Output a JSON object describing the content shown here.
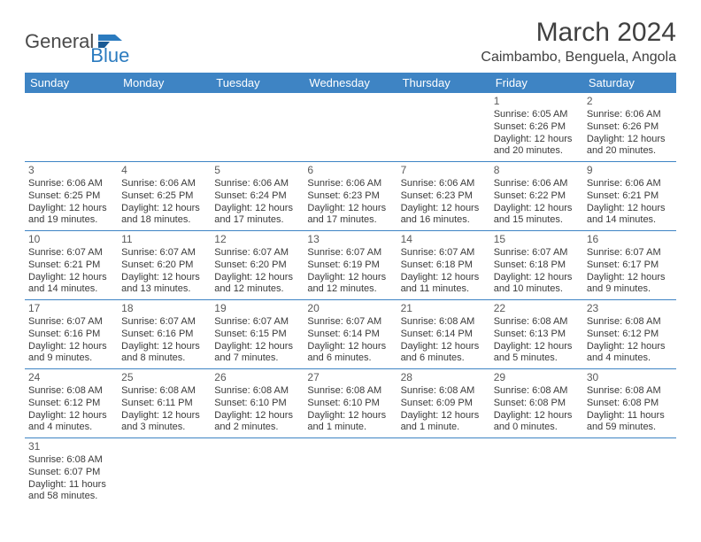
{
  "logo": {
    "text1": "General",
    "text2": "Blue"
  },
  "header": {
    "month": "March 2024",
    "location": "Caimbambo, Benguela, Angola"
  },
  "days": [
    "Sunday",
    "Monday",
    "Tuesday",
    "Wednesday",
    "Thursday",
    "Friday",
    "Saturday"
  ],
  "colors": {
    "header_bg": "#3e84c4",
    "header_text": "#ffffff",
    "text": "#3a3a3a",
    "logo_blue": "#2b7bbf"
  },
  "weeks": [
    [
      null,
      null,
      null,
      null,
      null,
      {
        "n": "1",
        "sr": "Sunrise: 6:05 AM",
        "ss": "Sunset: 6:26 PM",
        "d1": "Daylight: 12 hours",
        "d2": "and 20 minutes."
      },
      {
        "n": "2",
        "sr": "Sunrise: 6:06 AM",
        "ss": "Sunset: 6:26 PM",
        "d1": "Daylight: 12 hours",
        "d2": "and 20 minutes."
      }
    ],
    [
      {
        "n": "3",
        "sr": "Sunrise: 6:06 AM",
        "ss": "Sunset: 6:25 PM",
        "d1": "Daylight: 12 hours",
        "d2": "and 19 minutes."
      },
      {
        "n": "4",
        "sr": "Sunrise: 6:06 AM",
        "ss": "Sunset: 6:25 PM",
        "d1": "Daylight: 12 hours",
        "d2": "and 18 minutes."
      },
      {
        "n": "5",
        "sr": "Sunrise: 6:06 AM",
        "ss": "Sunset: 6:24 PM",
        "d1": "Daylight: 12 hours",
        "d2": "and 17 minutes."
      },
      {
        "n": "6",
        "sr": "Sunrise: 6:06 AM",
        "ss": "Sunset: 6:23 PM",
        "d1": "Daylight: 12 hours",
        "d2": "and 17 minutes."
      },
      {
        "n": "7",
        "sr": "Sunrise: 6:06 AM",
        "ss": "Sunset: 6:23 PM",
        "d1": "Daylight: 12 hours",
        "d2": "and 16 minutes."
      },
      {
        "n": "8",
        "sr": "Sunrise: 6:06 AM",
        "ss": "Sunset: 6:22 PM",
        "d1": "Daylight: 12 hours",
        "d2": "and 15 minutes."
      },
      {
        "n": "9",
        "sr": "Sunrise: 6:06 AM",
        "ss": "Sunset: 6:21 PM",
        "d1": "Daylight: 12 hours",
        "d2": "and 14 minutes."
      }
    ],
    [
      {
        "n": "10",
        "sr": "Sunrise: 6:07 AM",
        "ss": "Sunset: 6:21 PM",
        "d1": "Daylight: 12 hours",
        "d2": "and 14 minutes."
      },
      {
        "n": "11",
        "sr": "Sunrise: 6:07 AM",
        "ss": "Sunset: 6:20 PM",
        "d1": "Daylight: 12 hours",
        "d2": "and 13 minutes."
      },
      {
        "n": "12",
        "sr": "Sunrise: 6:07 AM",
        "ss": "Sunset: 6:20 PM",
        "d1": "Daylight: 12 hours",
        "d2": "and 12 minutes."
      },
      {
        "n": "13",
        "sr": "Sunrise: 6:07 AM",
        "ss": "Sunset: 6:19 PM",
        "d1": "Daylight: 12 hours",
        "d2": "and 12 minutes."
      },
      {
        "n": "14",
        "sr": "Sunrise: 6:07 AM",
        "ss": "Sunset: 6:18 PM",
        "d1": "Daylight: 12 hours",
        "d2": "and 11 minutes."
      },
      {
        "n": "15",
        "sr": "Sunrise: 6:07 AM",
        "ss": "Sunset: 6:18 PM",
        "d1": "Daylight: 12 hours",
        "d2": "and 10 minutes."
      },
      {
        "n": "16",
        "sr": "Sunrise: 6:07 AM",
        "ss": "Sunset: 6:17 PM",
        "d1": "Daylight: 12 hours",
        "d2": "and 9 minutes."
      }
    ],
    [
      {
        "n": "17",
        "sr": "Sunrise: 6:07 AM",
        "ss": "Sunset: 6:16 PM",
        "d1": "Daylight: 12 hours",
        "d2": "and 9 minutes."
      },
      {
        "n": "18",
        "sr": "Sunrise: 6:07 AM",
        "ss": "Sunset: 6:16 PM",
        "d1": "Daylight: 12 hours",
        "d2": "and 8 minutes."
      },
      {
        "n": "19",
        "sr": "Sunrise: 6:07 AM",
        "ss": "Sunset: 6:15 PM",
        "d1": "Daylight: 12 hours",
        "d2": "and 7 minutes."
      },
      {
        "n": "20",
        "sr": "Sunrise: 6:07 AM",
        "ss": "Sunset: 6:14 PM",
        "d1": "Daylight: 12 hours",
        "d2": "and 6 minutes."
      },
      {
        "n": "21",
        "sr": "Sunrise: 6:08 AM",
        "ss": "Sunset: 6:14 PM",
        "d1": "Daylight: 12 hours",
        "d2": "and 6 minutes."
      },
      {
        "n": "22",
        "sr": "Sunrise: 6:08 AM",
        "ss": "Sunset: 6:13 PM",
        "d1": "Daylight: 12 hours",
        "d2": "and 5 minutes."
      },
      {
        "n": "23",
        "sr": "Sunrise: 6:08 AM",
        "ss": "Sunset: 6:12 PM",
        "d1": "Daylight: 12 hours",
        "d2": "and 4 minutes."
      }
    ],
    [
      {
        "n": "24",
        "sr": "Sunrise: 6:08 AM",
        "ss": "Sunset: 6:12 PM",
        "d1": "Daylight: 12 hours",
        "d2": "and 4 minutes."
      },
      {
        "n": "25",
        "sr": "Sunrise: 6:08 AM",
        "ss": "Sunset: 6:11 PM",
        "d1": "Daylight: 12 hours",
        "d2": "and 3 minutes."
      },
      {
        "n": "26",
        "sr": "Sunrise: 6:08 AM",
        "ss": "Sunset: 6:10 PM",
        "d1": "Daylight: 12 hours",
        "d2": "and 2 minutes."
      },
      {
        "n": "27",
        "sr": "Sunrise: 6:08 AM",
        "ss": "Sunset: 6:10 PM",
        "d1": "Daylight: 12 hours",
        "d2": "and 1 minute."
      },
      {
        "n": "28",
        "sr": "Sunrise: 6:08 AM",
        "ss": "Sunset: 6:09 PM",
        "d1": "Daylight: 12 hours",
        "d2": "and 1 minute."
      },
      {
        "n": "29",
        "sr": "Sunrise: 6:08 AM",
        "ss": "Sunset: 6:08 PM",
        "d1": "Daylight: 12 hours",
        "d2": "and 0 minutes."
      },
      {
        "n": "30",
        "sr": "Sunrise: 6:08 AM",
        "ss": "Sunset: 6:08 PM",
        "d1": "Daylight: 11 hours",
        "d2": "and 59 minutes."
      }
    ],
    [
      {
        "n": "31",
        "sr": "Sunrise: 6:08 AM",
        "ss": "Sunset: 6:07 PM",
        "d1": "Daylight: 11 hours",
        "d2": "and 58 minutes."
      },
      null,
      null,
      null,
      null,
      null,
      null
    ]
  ]
}
